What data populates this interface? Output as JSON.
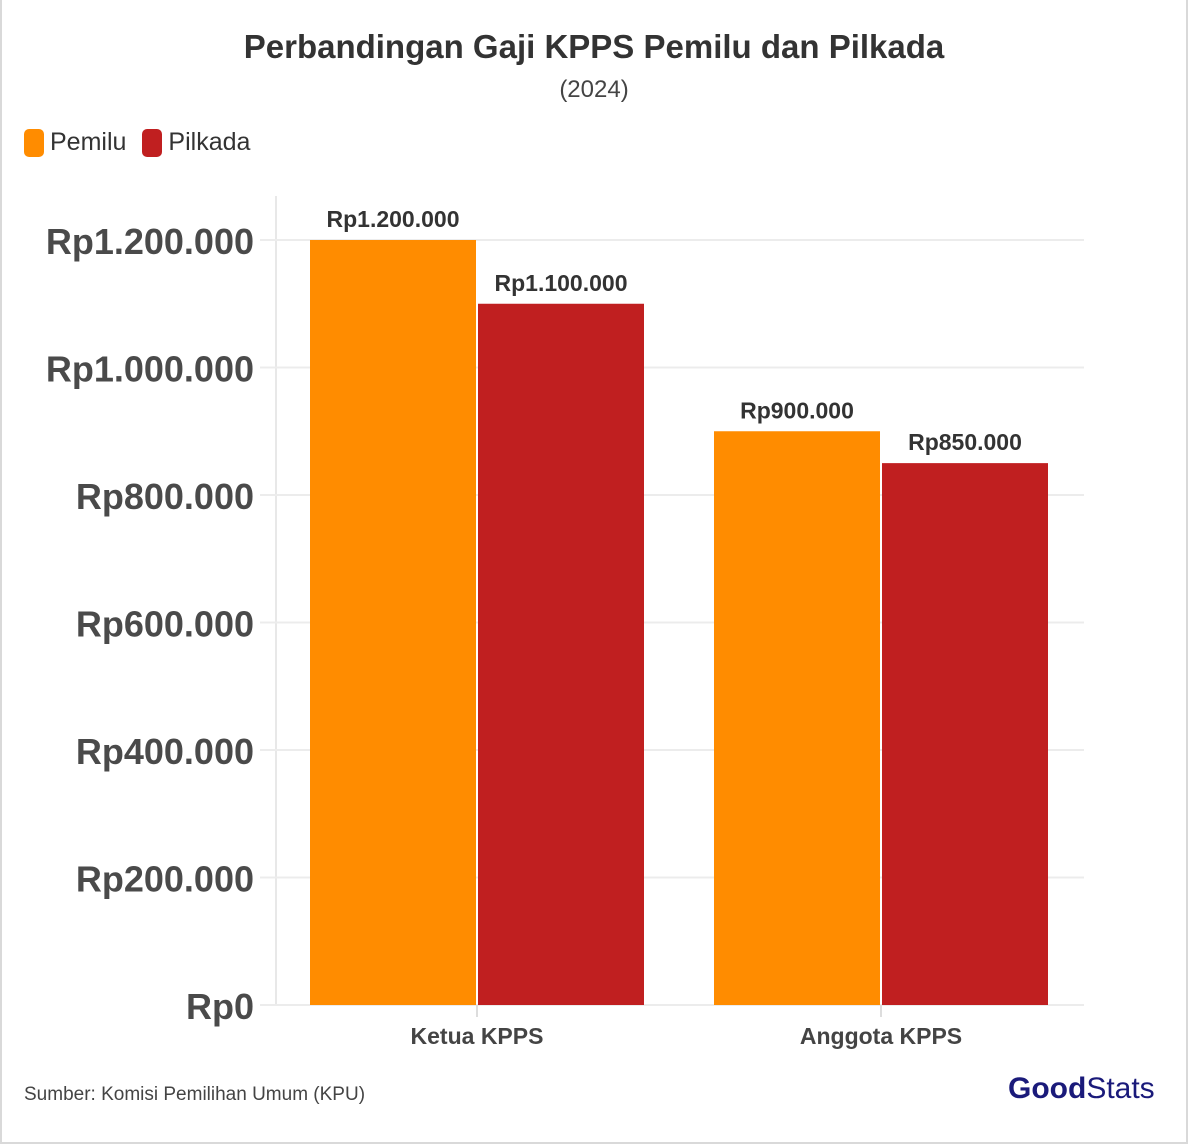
{
  "chart_data": {
    "type": "bar",
    "title": "Perbandingan Gaji KPPS Pemilu dan Pilkada",
    "subtitle": "(2024)",
    "categories": [
      "Ketua KPPS",
      "Anggota KPPS"
    ],
    "series": [
      {
        "name": "Pemilu",
        "color": "#ff8c00",
        "values": [
          1200000,
          900000
        ],
        "labels": [
          "Rp1.200.000",
          "Rp900.000"
        ]
      },
      {
        "name": "Pilkada",
        "color": "#c01f20",
        "values": [
          1100000,
          850000
        ],
        "labels": [
          "Rp1.100.000",
          "Rp850.000"
        ]
      }
    ],
    "yticks": [
      0,
      200000,
      400000,
      600000,
      800000,
      1000000,
      1200000
    ],
    "ytick_labels": [
      "Rp0",
      "Rp200.000",
      "Rp400.000",
      "Rp600.000",
      "Rp800.000",
      "Rp1.000.000",
      "Rp1.200.000"
    ],
    "ylim": [
      0,
      1200000
    ],
    "grid": true,
    "legend": "top-left",
    "xlabel": "",
    "ylabel": ""
  },
  "source": "Sumber: Komisi Pemilihan Umum (KPU)",
  "logo": {
    "part1": "Good",
    "part2": "Stats"
  }
}
